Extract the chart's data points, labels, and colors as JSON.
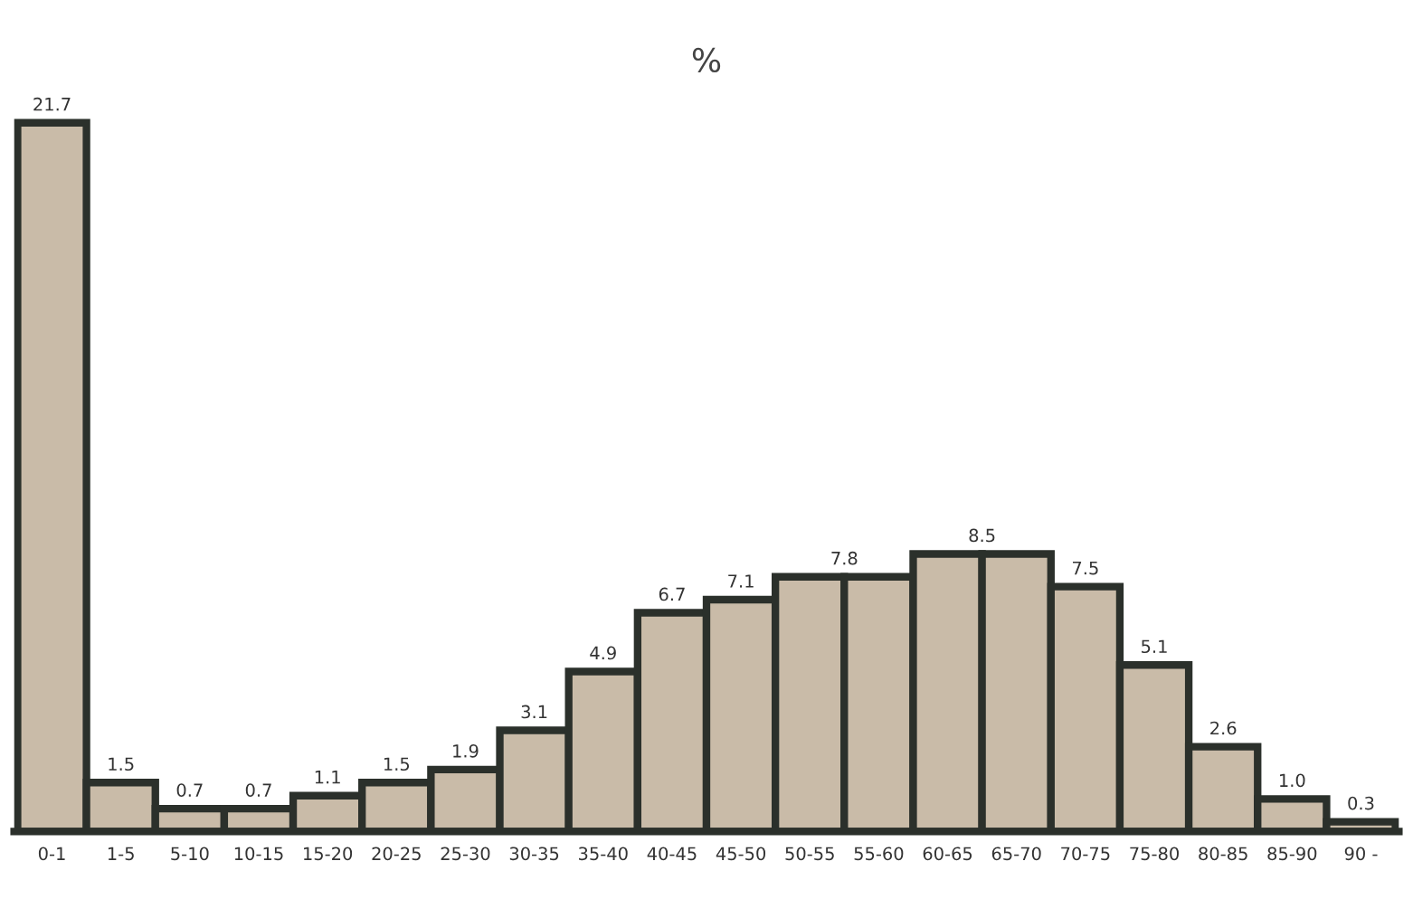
{
  "chart_data": {
    "type": "bar",
    "title": "%",
    "categories": [
      "0-1",
      "1-5",
      "5-10",
      "10-15",
      "15-20",
      "20-25",
      "25-30",
      "30-35",
      "35-40",
      "40-45",
      "45-50",
      "50-55",
      "55-60",
      "60-65",
      "65-70",
      "70-75",
      "75-80",
      "80-85",
      "85-90",
      "90 -"
    ],
    "values": [
      21.7,
      1.5,
      0.7,
      0.7,
      1.1,
      1.5,
      1.9,
      3.1,
      4.9,
      6.7,
      7.1,
      7.8,
      7.8,
      8.5,
      8.5,
      7.5,
      5.1,
      2.6,
      1.0,
      0.3
    ],
    "value_labels": [
      "21.7",
      "1.5",
      "0.7",
      "0.7",
      "1.1",
      "1.5",
      "1.9",
      "3.1",
      "4.9",
      "6.7",
      "7.1",
      "7.8",
      null,
      "8.5",
      null,
      "7.5",
      "5.1",
      "2.6",
      "1.0",
      "0.3"
    ],
    "color": "#c9bba8",
    "grid": false,
    "legend": false
  }
}
